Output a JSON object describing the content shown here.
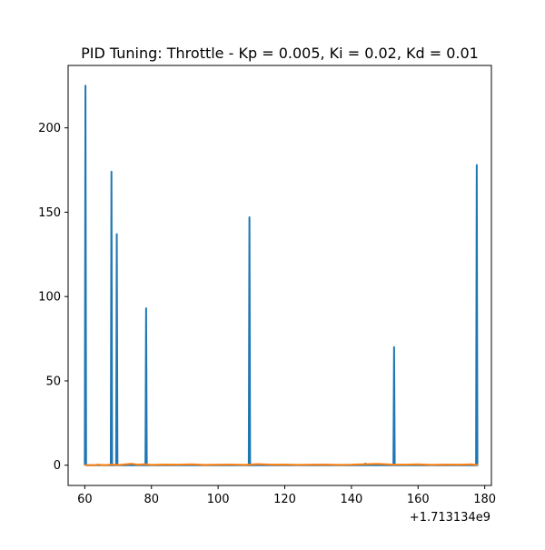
{
  "chart_data": {
    "type": "line",
    "title": "PID Tuning: Throttle - Kp = 0.005, Ki = 0.02, Kd = 0.01",
    "xlabel": "",
    "ylabel": "",
    "x_offset_label": "+1.713134e9",
    "xlim": [
      55,
      182
    ],
    "ylim": [
      -12,
      237
    ],
    "grid": false,
    "x_ticks": [
      {
        "value": 60,
        "label": "60"
      },
      {
        "value": 80,
        "label": "80"
      },
      {
        "value": 100,
        "label": "100"
      },
      {
        "value": 120,
        "label": "120"
      },
      {
        "value": 140,
        "label": "140"
      },
      {
        "value": 160,
        "label": "160"
      },
      {
        "value": 180,
        "label": "180"
      }
    ],
    "y_ticks": [
      {
        "value": 0,
        "label": "0"
      },
      {
        "value": 50,
        "label": "50"
      },
      {
        "value": 100,
        "label": "100"
      },
      {
        "value": 150,
        "label": "150"
      },
      {
        "value": 200,
        "label": "200"
      }
    ],
    "series": [
      {
        "color": "#1f77b4",
        "x": [
          60.0,
          60.2,
          60.4,
          60.6,
          67.8,
          68.0,
          68.2,
          69.4,
          69.6,
          69.8,
          78.2,
          78.4,
          78.6,
          98.0,
          109.2,
          109.4,
          109.6,
          128.5,
          144.0,
          144.2,
          144.4,
          152.6,
          152.8,
          153.0,
          170.0,
          177.4,
          177.6,
          177.8,
          178.0
        ],
        "y": [
          0,
          225,
          0,
          0,
          0,
          174,
          0,
          0,
          137,
          0,
          0,
          93,
          0,
          0,
          0,
          147,
          0,
          0,
          0,
          1,
          0,
          0,
          70,
          0,
          0,
          0,
          178,
          0,
          0
        ]
      },
      {
        "color": "#ff7f0e",
        "x": [
          60,
          62,
          64,
          66,
          68,
          70,
          72,
          74,
          76,
          78,
          80,
          84,
          88,
          92,
          96,
          100,
          104,
          108,
          112,
          116,
          120,
          124,
          128,
          132,
          136,
          140,
          144,
          148,
          152,
          156,
          160,
          164,
          168,
          172,
          176,
          178
        ],
        "y": [
          0.2,
          -0.1,
          0.3,
          0.0,
          0.4,
          0.1,
          0.5,
          0.9,
          0.3,
          0.6,
          0.2,
          0.4,
          0.3,
          0.5,
          0.2,
          0.3,
          0.4,
          0.2,
          0.7,
          0.3,
          0.4,
          0.2,
          0.3,
          0.4,
          0.2,
          0.3,
          0.6,
          0.8,
          0.4,
          0.3,
          0.5,
          0.2,
          0.4,
          0.3,
          0.5,
          0.2
        ]
      }
    ]
  }
}
